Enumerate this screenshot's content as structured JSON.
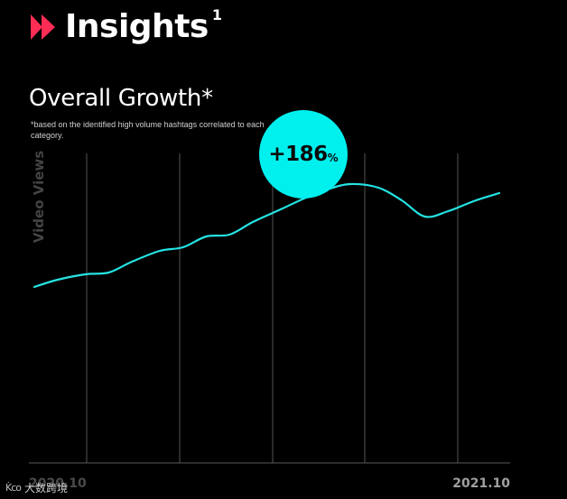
{
  "header": {
    "title": "Insights",
    "superscript": "1",
    "brand_color": "#ff2d55"
  },
  "chart_title": "Overall Growth*",
  "chart_note": "*based on the identified high volume hashtags correlated to each category.",
  "badge": {
    "value": "+186",
    "unit": "%",
    "color": "#00f0ee"
  },
  "watermark": {
    "logo": "K̀co",
    "text": "大数跨境"
  },
  "chart_data": {
    "type": "line",
    "title": "Overall Growth*",
    "ylabel": "Video Views",
    "xlabel": "",
    "x_tick_labels": [
      "2020.10",
      "2021.10"
    ],
    "y_ticks_shown": false,
    "ylim": [
      0,
      100
    ],
    "xlim": [
      0,
      100
    ],
    "grid": "vertical",
    "line_color": "#25e3e3",
    "series": [
      {
        "x": [
          0,
          5,
          11,
          16,
          21,
          27,
          32,
          37,
          42,
          47,
          53,
          58,
          63,
          68,
          74,
          79,
          84,
          89,
          95,
          100
        ],
        "values": [
          41,
          45,
          48,
          49,
          55,
          61,
          63,
          69,
          70,
          77,
          84,
          90,
          95,
          98,
          96,
          89,
          80,
          83,
          89,
          93
        ]
      }
    ]
  }
}
